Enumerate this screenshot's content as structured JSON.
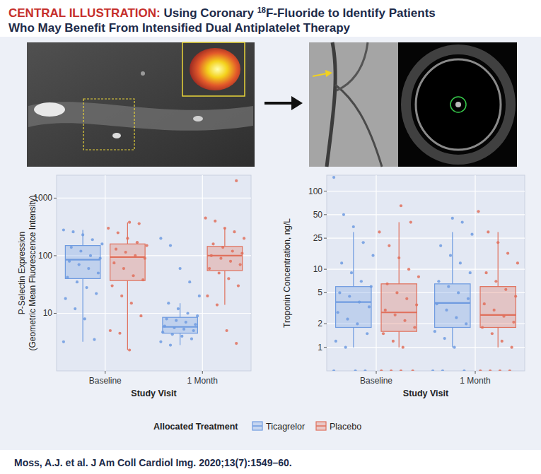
{
  "header": {
    "label": "CENTRAL ILLUSTRATION:",
    "before_sup": "Using Coronary ",
    "sup": "18",
    "after_sup": "F-Fluoride to Identify Patients",
    "line2": "Who May Benefit From Intensified Dual Antiplatelet Therapy"
  },
  "citation": "Moss, A.J. et al. J Am Coll Cardiol Img. 2020;13(7):1549–60.",
  "chart_data": [
    {
      "type": "box",
      "ylabel": [
        "P-Selectin Expression",
        "(Geometric Mean Fluorescence Intensity)"
      ],
      "xlabel": "Study Visit",
      "categories": [
        "Baseline",
        "1 Month"
      ],
      "log": "y",
      "grid": true,
      "legend": "bottom",
      "legend_title": "Allocated Treatment",
      "ylim": [
        1,
        2500
      ],
      "yticks": [
        10,
        100,
        1000
      ],
      "series": [
        {
          "name": "Ticagrelor",
          "color": "#6f9be0",
          "boxes": [
            {
              "low": 3.2,
              "q1": 40,
              "median": 85,
              "q3": 150,
              "high": 280
            },
            {
              "low": 2.8,
              "q1": 4.5,
              "median": 5.8,
              "q3": 8.5,
              "high": 15
            }
          ],
          "points": [
            [
              3.2,
              3.5,
              8,
              12,
              18,
              22,
              28,
              35,
              42,
              50,
              60,
              70,
              80,
              90,
              100,
              120,
              140,
              160,
              190,
              230,
              260,
              280
            ],
            [
              2.8,
              3.2,
              3.6,
              4,
              4.3,
              4.7,
              5,
              5.3,
              5.6,
              6,
              6.4,
              7,
              7.5,
              8,
              9,
              10,
              12,
              15,
              20,
              35,
              60,
              150,
              200
            ]
          ]
        },
        {
          "name": "Placebo",
          "color": "#e0705c",
          "boxes": [
            {
              "low": 2.3,
              "q1": 37,
              "median": 95,
              "q3": 160,
              "high": 380
            },
            {
              "low": 14,
              "q1": 55,
              "median": 100,
              "q3": 145,
              "high": 300
            }
          ],
          "points": [
            [
              2.3,
              4.5,
              5,
              9,
              15,
              20,
              30,
              38,
              45,
              60,
              75,
              90,
              100,
              115,
              130,
              150,
              170,
              200,
              250,
              300,
              360,
              380
            ],
            [
              3,
              5,
              14,
              20,
              30,
              40,
              50,
              60,
              70,
              80,
              90,
              100,
              110,
              120,
              140,
              160,
              200,
              260,
              300,
              400,
              450,
              2000
            ]
          ]
        }
      ]
    },
    {
      "type": "box",
      "ylabel": [
        "Troponin Concentration, ng/L"
      ],
      "xlabel": "Study Visit",
      "categories": [
        "Baseline",
        "1 Month"
      ],
      "log": "y",
      "grid": true,
      "ylim": [
        0.5,
        160
      ],
      "yticks": [
        1,
        2,
        5,
        10,
        25,
        50,
        100
      ],
      "series": [
        {
          "color": "#6f9be0",
          "boxes": [
            {
              "low": 1,
              "q1": 1.8,
              "median": 3.8,
              "q3": 6,
              "high": 30
            },
            {
              "low": 1,
              "q1": 1.8,
              "median": 3.7,
              "q3": 6.5,
              "high": 30
            }
          ],
          "points": [
            [
              0,
              0,
              0,
              1,
              1.2,
              1.5,
              2,
              2.3,
              2.8,
              3.3,
              3.8,
              4.5,
              5,
              6,
              7,
              9,
              12,
              15,
              22,
              35,
              50,
              150
            ],
            [
              0,
              0,
              0,
              1,
              1.3,
              1.6,
              2,
              2.4,
              3,
              3.6,
              4.2,
              5,
              6,
              7,
              9,
              12,
              15,
              20,
              28,
              40,
              45
            ]
          ]
        },
        {
          "color": "#e0705c",
          "boxes": [
            {
              "low": 1,
              "q1": 1.6,
              "median": 2.8,
              "q3": 6.5,
              "high": 40
            },
            {
              "low": 1,
              "q1": 1.8,
              "median": 2.6,
              "q3": 6,
              "high": 30
            }
          ],
          "points": [
            [
              0,
              0,
              0,
              0,
              1,
              1.2,
              1.5,
              1.8,
              2.2,
              2.6,
              3,
              3.5,
              4.2,
              5,
              6.5,
              8,
              10,
              14,
              20,
              30,
              40,
              65
            ],
            [
              0,
              0,
              0,
              0,
              1,
              1.2,
              1.5,
              1.8,
              2.1,
              2.5,
              3,
              3.6,
              4.5,
              5.5,
              7,
              9,
              12,
              16,
              22,
              30,
              55
            ]
          ]
        }
      ]
    }
  ]
}
